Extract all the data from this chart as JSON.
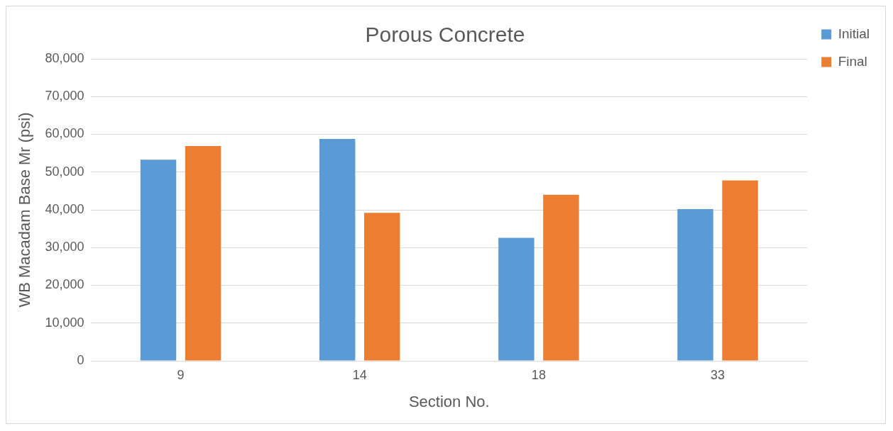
{
  "chart_data": {
    "type": "bar",
    "title": "Porous Concrete",
    "xlabel": "Section No.",
    "ylabel": "WB Macadam Base Mr (psi)",
    "categories": [
      "9",
      "14",
      "18",
      "33"
    ],
    "series": [
      {
        "name": "Initial",
        "color": "#5b9bd5",
        "values": [
          53300,
          58800,
          32600,
          40200
        ]
      },
      {
        "name": "Final",
        "color": "#ed7d31",
        "values": [
          56900,
          39200,
          44000,
          47800
        ]
      }
    ],
    "ylim": [
      0,
      80000
    ],
    "yticks": [
      {
        "value": 0,
        "label": "0"
      },
      {
        "value": 10000,
        "label": "10,000"
      },
      {
        "value": 20000,
        "label": "20,000"
      },
      {
        "value": 30000,
        "label": "30,000"
      },
      {
        "value": 40000,
        "label": "40,000"
      },
      {
        "value": 50000,
        "label": "50,000"
      },
      {
        "value": 60000,
        "label": "60,000"
      },
      {
        "value": 70000,
        "label": "70,000"
      },
      {
        "value": 80000,
        "label": "80,000"
      }
    ],
    "grid": "y",
    "legend": "top right"
  }
}
